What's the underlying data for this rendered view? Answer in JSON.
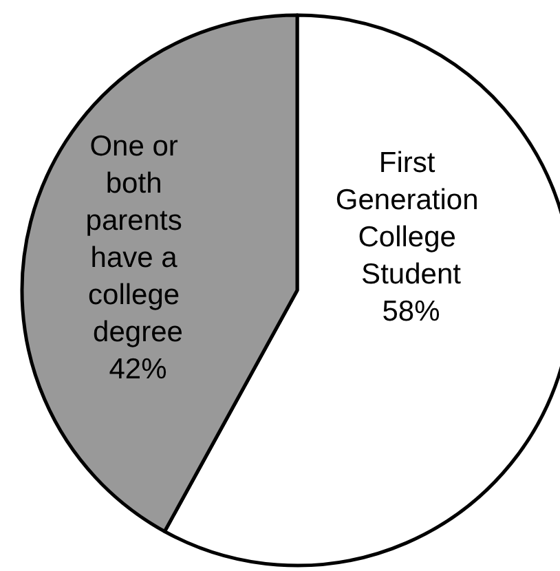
{
  "chart_data": {
    "type": "pie",
    "categories": [
      "First Generation College Student",
      "One or both parents have a college degree"
    ],
    "values": [
      58,
      42
    ],
    "colors": [
      "#ffffff",
      "#999999"
    ],
    "value_labels": [
      "58%",
      "42%"
    ]
  }
}
